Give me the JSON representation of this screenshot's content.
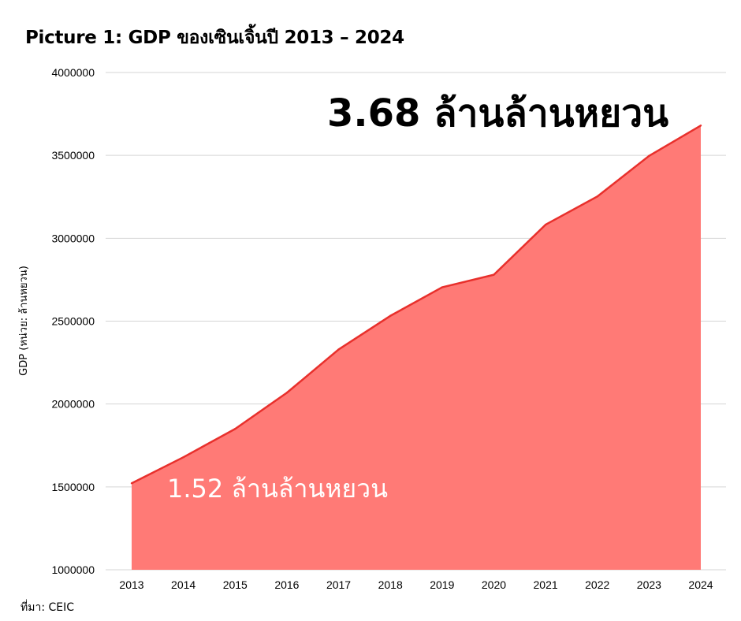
{
  "page": {
    "title": "Picture 1: GDP ของเซินเจิ้นปี 2013 – 2024",
    "source": "ที่มา: CEIC"
  },
  "chart_data": {
    "type": "area",
    "title": "Picture 1: GDP ของเซินเจิ้นปี 2013 – 2024",
    "xlabel": "",
    "ylabel": "GDP (หน่วย: ล้านหยวน)",
    "categories": [
      "2013",
      "2014",
      "2015",
      "2016",
      "2017",
      "2018",
      "2019",
      "2020",
      "2021",
      "2022",
      "2023",
      "2024"
    ],
    "series": [
      {
        "values": [
          1522000,
          1679000,
          1850000,
          2068000,
          2329000,
          2532000,
          2704000,
          2780000,
          3082000,
          3252000,
          3497000,
          3680000
        ]
      }
    ],
    "ylim": [
      1000000,
      4000000
    ],
    "yticks": [
      "1000000",
      "1500000",
      "2000000",
      "2500000",
      "3000000",
      "3500000",
      "4000000"
    ],
    "grid": "horizontal",
    "colors": {
      "fill": "#ff7a76",
      "line": "#e8302c",
      "grid": "#d5d5d5"
    },
    "annotations": [
      {
        "text": "3.68 ล้านล้านหยวน",
        "color": "#000000"
      },
      {
        "text": "1.52 ล้านล้านหยวน",
        "color": "#ffffff"
      }
    ]
  }
}
